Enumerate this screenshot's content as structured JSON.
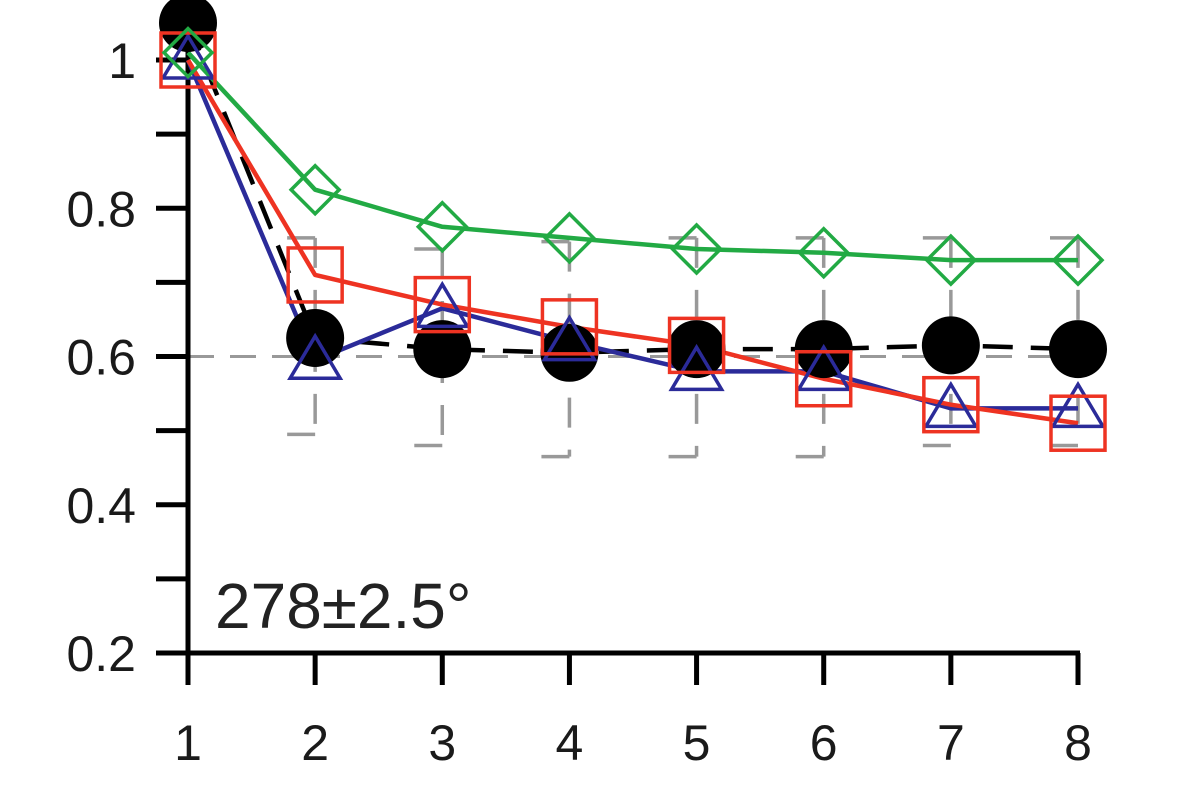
{
  "chart_data": {
    "type": "line",
    "x": [
      1,
      2,
      3,
      4,
      5,
      6,
      7,
      8
    ],
    "xlim": [
      1,
      8
    ],
    "ylim": [
      0.2,
      1.0
    ],
    "x_ticks": [
      "1",
      "2",
      "3",
      "4",
      "5",
      "6",
      "7",
      "8"
    ],
    "y_ticks": [
      {
        "value": 0.2,
        "label": "0.2"
      },
      {
        "value": 0.4,
        "label": "0.4"
      },
      {
        "value": 0.6,
        "label": "0.6"
      },
      {
        "value": 0.8,
        "label": "0.8"
      },
      {
        "value": 1.0,
        "label": "1"
      }
    ],
    "y_minor_ticks": [
      0.3,
      0.5,
      0.7,
      0.9
    ],
    "reference_line": {
      "y": 0.6,
      "color": "#999999"
    },
    "annotation": "278±2.5°",
    "legend": "none",
    "grid": false,
    "series": [
      {
        "marker": "circle",
        "color": "#000000",
        "line_style": "dashed",
        "values": [
          1.05,
          0.625,
          0.61,
          0.605,
          0.61,
          0.61,
          0.615,
          0.61
        ],
        "error_low": [
          null,
          0.495,
          0.48,
          0.465,
          0.465,
          0.465,
          0.48,
          0.48
        ],
        "error_high": [
          null,
          0.76,
          0.745,
          0.755,
          0.76,
          0.76,
          0.76,
          0.76
        ],
        "error_color": "#999999"
      },
      {
        "marker": "triangle",
        "color": "#2b2b99",
        "line_style": "solid",
        "values": [
          1.0,
          0.595,
          0.665,
          0.62,
          0.58,
          0.58,
          0.53,
          0.53
        ]
      },
      {
        "marker": "square",
        "color": "#ee3322",
        "line_style": "solid",
        "values": [
          1.0,
          0.71,
          0.67,
          0.64,
          0.615,
          0.57,
          0.535,
          0.51
        ]
      },
      {
        "marker": "diamond",
        "color": "#22aa44",
        "line_style": "solid",
        "values": [
          1.01,
          0.825,
          0.775,
          0.76,
          0.745,
          0.74,
          0.73,
          0.73
        ]
      }
    ]
  }
}
